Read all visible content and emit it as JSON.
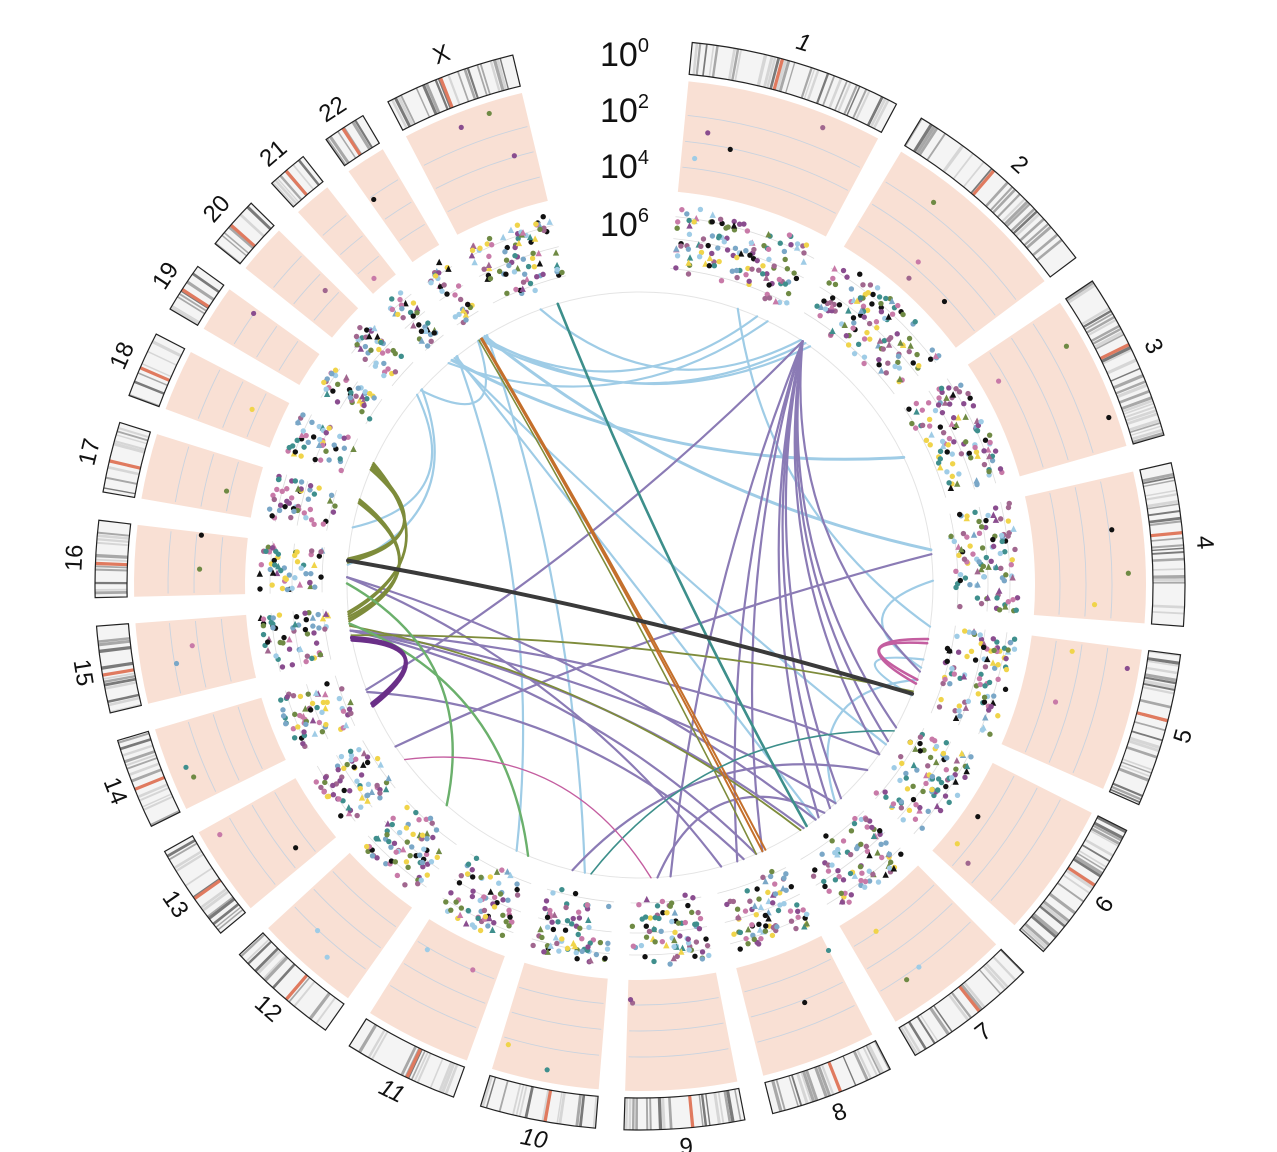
{
  "figure": {
    "scale_labels": [
      {
        "base": "10",
        "exponent": "0"
      },
      {
        "base": "10",
        "exponent": "2"
      },
      {
        "base": "10",
        "exponent": "4"
      },
      {
        "base": "10",
        "exponent": "6"
      }
    ],
    "chromosomes": [
      {
        "label": "1",
        "italic": true,
        "size": 249
      },
      {
        "label": "2",
        "italic": false,
        "size": 243
      },
      {
        "label": "3",
        "italic": false,
        "size": 198
      },
      {
        "label": "4",
        "italic": false,
        "size": 191
      },
      {
        "label": "5",
        "italic": false,
        "size": 181
      },
      {
        "label": "6",
        "italic": false,
        "size": 171
      },
      {
        "label": "7",
        "italic": false,
        "size": 159
      },
      {
        "label": "8",
        "italic": false,
        "size": 146
      },
      {
        "label": "9",
        "italic": false,
        "size": 141
      },
      {
        "label": "10",
        "italic": true,
        "size": 136
      },
      {
        "label": "11",
        "italic": true,
        "size": 135
      },
      {
        "label": "12",
        "italic": false,
        "size": 133
      },
      {
        "label": "13",
        "italic": false,
        "size": 115
      },
      {
        "label": "14",
        "italic": false,
        "size": 107
      },
      {
        "label": "15",
        "italic": false,
        "size": 102
      },
      {
        "label": "16",
        "italic": false,
        "size": 90
      },
      {
        "label": "17",
        "italic": false,
        "size": 83
      },
      {
        "label": "18",
        "italic": false,
        "size": 78
      },
      {
        "label": "19",
        "italic": false,
        "size": 59
      },
      {
        "label": "20",
        "italic": false,
        "size": 63
      },
      {
        "label": "21",
        "italic": false,
        "size": 48
      },
      {
        "label": "22",
        "italic": false,
        "size": 51
      },
      {
        "label": "X",
        "italic": false,
        "size": 155
      }
    ],
    "colors": {
      "band_dark": "#7a7a7a",
      "band_mid": "#a8a8a8",
      "band_light": "#d6d6d6",
      "ideogram_bg": "#f4f4f4",
      "ideogram_outline": "#222222",
      "track_fill": "#f9e0d4",
      "track_grid": "#c9d3df",
      "point_ring": "#dddddd",
      "link_light_blue": "#9fcce6",
      "link_purple": "#8b7bb5",
      "link_olive": "#7e8c3b",
      "link_green": "#6bb06c",
      "link_teal": "#3d8f8b",
      "link_orange": "#c46f2b",
      "link_dark": "#3a3a3a",
      "link_pink": "#c45ea0",
      "link_deep_purple": "#6a2f88",
      "point_palette": [
        "#8a4d8f",
        "#3f8f8d",
        "#c87aa8",
        "#9fcce6",
        "#6f8a44",
        "#f0d44a",
        "#111111",
        "#7aa7c7",
        "#a1678f"
      ]
    }
  }
}
